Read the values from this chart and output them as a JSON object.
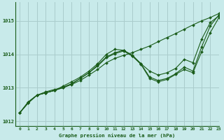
{
  "background_color": "#c8eaea",
  "grid_color": "#aacccc",
  "line_color": "#1a5c1a",
  "title": "Graphe pression niveau de la mer (hPa)",
  "xlim": [
    -0.5,
    23
  ],
  "ylim": [
    1011.85,
    1015.55
  ],
  "yticks": [
    1012,
    1013,
    1014,
    1015
  ],
  "xticks": [
    0,
    1,
    2,
    3,
    4,
    5,
    6,
    7,
    8,
    9,
    10,
    11,
    12,
    13,
    14,
    15,
    16,
    17,
    18,
    19,
    20,
    21,
    22,
    23
  ],
  "series": [
    {
      "x": [
        0,
        1,
        2,
        3,
        4,
        5,
        6,
        7,
        8,
        9,
        10,
        11,
        12,
        13,
        14,
        15,
        16,
        17,
        18,
        19,
        20,
        21,
        22,
        23
      ],
      "y": [
        1012.25,
        1012.55,
        1012.78,
        1012.85,
        1012.92,
        1013.0,
        1013.1,
        1013.22,
        1013.38,
        1013.55,
        1013.75,
        1013.88,
        1013.97,
        1014.05,
        1014.15,
        1014.25,
        1014.38,
        1014.5,
        1014.62,
        1014.75,
        1014.88,
        1015.0,
        1015.1,
        1015.22
      ]
    },
    {
      "x": [
        0,
        1,
        2,
        3,
        4,
        5,
        6,
        7,
        8,
        9,
        10,
        11,
        12,
        13,
        14,
        15,
        16,
        17,
        18,
        19,
        20,
        21,
        22,
        23
      ],
      "y": [
        1012.25,
        1012.55,
        1012.78,
        1012.85,
        1012.92,
        1013.05,
        1013.18,
        1013.32,
        1013.5,
        1013.72,
        1014.0,
        1014.15,
        1014.12,
        1013.95,
        1013.72,
        1013.5,
        1013.38,
        1013.45,
        1013.58,
        1013.85,
        1013.75,
        1014.45,
        1014.95,
        1015.15
      ]
    },
    {
      "x": [
        0,
        1,
        2,
        3,
        4,
        5,
        6,
        7,
        8,
        9,
        10,
        11,
        12,
        13,
        14,
        15,
        16,
        17,
        18,
        19,
        20,
        21,
        22,
        23
      ],
      "y": [
        1012.25,
        1012.58,
        1012.78,
        1012.85,
        1012.92,
        1013.02,
        1013.12,
        1013.28,
        1013.45,
        1013.68,
        1013.92,
        1014.05,
        1014.12,
        1013.98,
        1013.72,
        1013.32,
        1013.22,
        1013.28,
        1013.42,
        1013.62,
        1013.5,
        1014.22,
        1014.85,
        1015.18
      ]
    },
    {
      "x": [
        0,
        1,
        2,
        3,
        4,
        5,
        6,
        7,
        8,
        9,
        10,
        11,
        12,
        13,
        14,
        15,
        16,
        17,
        18,
        19,
        20,
        21,
        22,
        23
      ],
      "y": [
        1012.25,
        1012.58,
        1012.78,
        1012.88,
        1012.95,
        1013.0,
        1013.12,
        1013.28,
        1013.45,
        1013.65,
        1013.9,
        1014.02,
        1014.1,
        1013.95,
        1013.7,
        1013.28,
        1013.18,
        1013.25,
        1013.4,
        1013.55,
        1013.45,
        1014.08,
        1014.65,
        1015.1
      ]
    }
  ]
}
